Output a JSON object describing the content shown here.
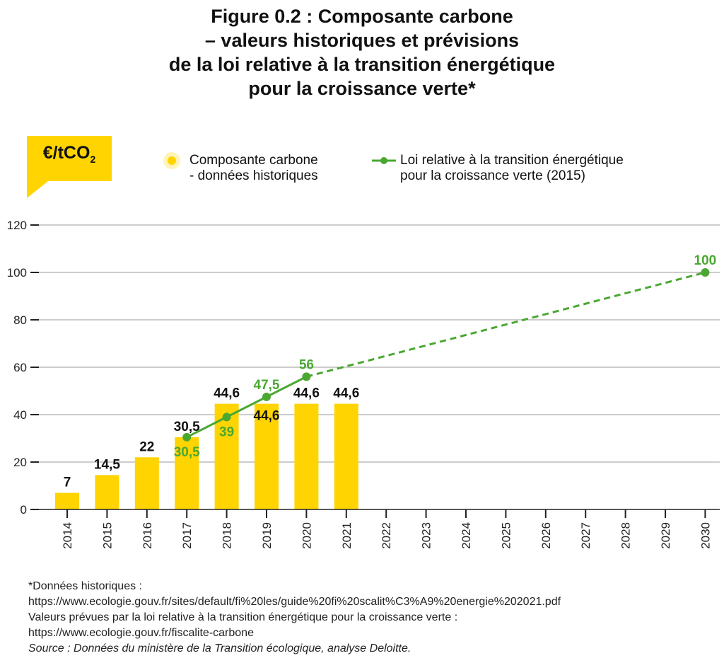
{
  "title_lines": [
    "Figure 0.2 : Composante carbone",
    "– valeurs historiques et prévisions",
    "de la loi relative à la transition énergétique",
    "pour la croissance verte*"
  ],
  "unit_label": {
    "main": "€/tCO",
    "sub": "2"
  },
  "legend": {
    "historical": [
      "Composante carbone",
      "- données historiques"
    ],
    "law": [
      "Loi relative à la transition énergétique",
      "pour la croissance verte (2015)"
    ]
  },
  "colors": {
    "bar": "#FFD400",
    "law": "#4AA832",
    "axis": "#222222",
    "grid": "#999999"
  },
  "chart_data": {
    "type": "bar",
    "ylim": [
      0,
      120
    ],
    "yticks": [
      0,
      20,
      40,
      60,
      80,
      100,
      120
    ],
    "categories": [
      "2014",
      "2015",
      "2016",
      "2017",
      "2018",
      "2019",
      "2020",
      "2021",
      "2022",
      "2023",
      "2024",
      "2025",
      "2026",
      "2027",
      "2028",
      "2029",
      "2030"
    ],
    "grid": true,
    "legend_position": "top",
    "series": [
      {
        "name": "Composante carbone - données historiques",
        "type": "bar",
        "x": [
          "2014",
          "2015",
          "2016",
          "2017",
          "2018",
          "2019",
          "2020",
          "2021"
        ],
        "values": [
          7,
          14.5,
          22,
          30.5,
          44.6,
          44.6,
          44.6,
          44.6
        ],
        "labels": [
          "7",
          "14,5",
          "22",
          "30,5",
          "44,6",
          "44,6",
          "44,6",
          "44,6"
        ]
      },
      {
        "name": "Loi relative à la transition énergétique pour la croissance verte (2015)",
        "type": "line",
        "x": [
          "2017",
          "2018",
          "2019",
          "2020"
        ],
        "values": [
          30.5,
          39,
          47.5,
          56
        ],
        "labels": [
          "30,5",
          "39",
          "47,5",
          "56"
        ]
      },
      {
        "name": "Loi relative à la transition énergétique pour la croissance verte (2015)",
        "type": "line-dashed",
        "x": [
          "2020",
          "2030"
        ],
        "values": [
          56,
          100
        ],
        "labels": [
          "",
          "100"
        ]
      }
    ]
  },
  "footnote": {
    "lines": [
      "*Données historiques :",
      "https://www.ecologie.gouv.fr/sites/default/fi%20les/guide%20fi%20scalit%C3%A9%20energie%202021.pdf",
      "Valeurs prévues par la loi relative à la transition énergétique pour la croissance verte :",
      "https://www.ecologie.gouv.fr/fiscalite-carbone"
    ],
    "source": "Source : Données du ministère de la Transition écologique, analyse Deloitte."
  }
}
